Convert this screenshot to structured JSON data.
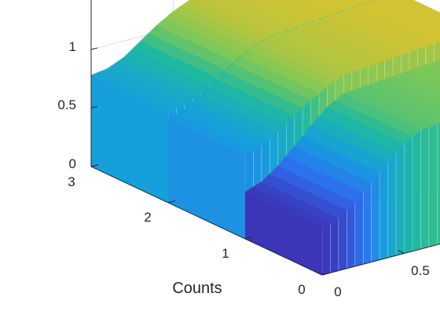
{
  "chart_data": {
    "type": "area",
    "title": "",
    "xlabel": "",
    "ylabel": "Counts",
    "zlabel": "",
    "grid": true,
    "z_ticks": [
      "0",
      "0.5",
      "1"
    ],
    "counts_ticks": [
      "0",
      "1",
      "2",
      "3"
    ],
    "x_ticks": [
      "0",
      "0.5"
    ],
    "series": [
      {
        "counts": 3,
        "x": [
          0,
          0.1,
          0.2,
          0.3,
          0.4,
          0.5,
          0.6
        ],
        "values": [
          0.78,
          0.8,
          0.86,
          0.96,
          1.06,
          1.14,
          1.2
        ]
      },
      {
        "counts": 2,
        "x": [
          0,
          0.1,
          0.2,
          0.3,
          0.4,
          0.5,
          0.6
        ],
        "values": [
          0.72,
          0.76,
          0.84,
          0.94,
          1.04,
          1.12,
          1.18
        ]
      },
      {
        "counts": 1,
        "x": [
          0,
          0.1,
          0.2,
          0.3,
          0.4,
          0.5,
          0.6
        ],
        "values": [
          0.4,
          0.45,
          0.55,
          0.68,
          0.82,
          0.94,
          1.02
        ]
      }
    ]
  }
}
